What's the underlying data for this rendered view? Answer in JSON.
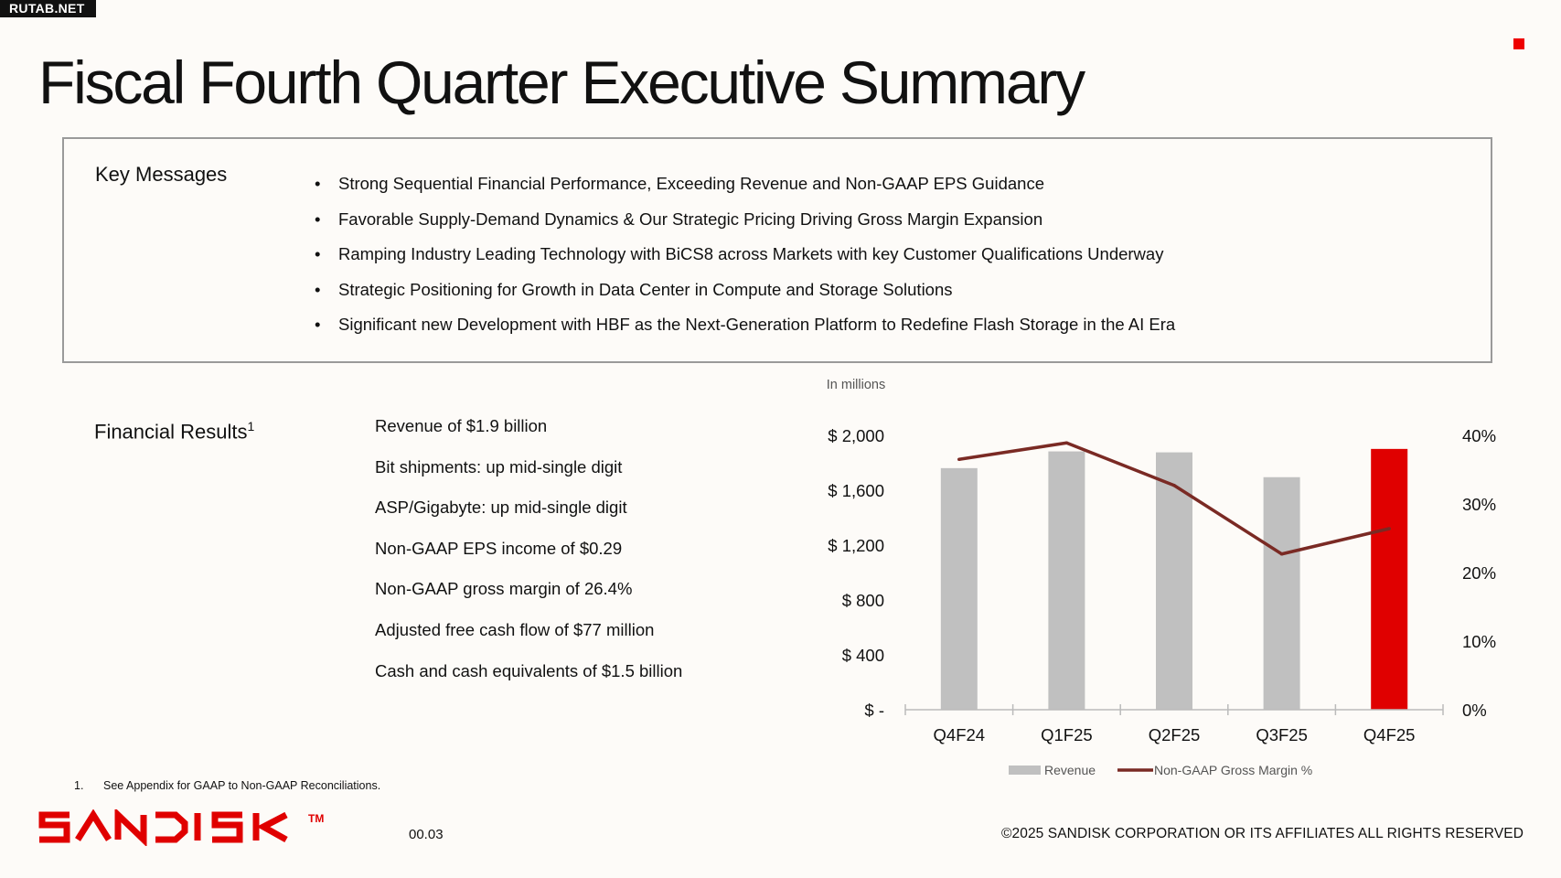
{
  "watermark": "RUTAB.NET",
  "title": "Fiscal Fourth Quarter Executive Summary",
  "key_messages": {
    "heading": "Key Messages",
    "items": [
      "Strong Sequential Financial Performance, Exceeding Revenue and Non-GAAP EPS Guidance",
      "Favorable Supply-Demand Dynamics & Our Strategic Pricing Driving Gross Margin Expansion",
      "Ramping Industry Leading Technology with BiCS8 across Markets with key Customer Qualifications Underway",
      "Strategic Positioning for Growth in Data Center in Compute and Storage Solutions",
      "Significant new Development with HBF as the Next-Generation Platform to Redefine Flash Storage in the AI Era"
    ]
  },
  "financial_results": {
    "heading": "Financial Results",
    "heading_sup": "1",
    "items": [
      "Revenue of $1.9 billion",
      "Bit shipments: up mid-single digit",
      "ASP/Gigabyte: up mid-single digit",
      "Non-GAAP EPS income of $0.29",
      "Non-GAAP gross margin of 26.4%",
      "Adjusted free cash flow of $77 million",
      "Cash and cash equivalents of $1.5 billion"
    ]
  },
  "chart_data": {
    "type": "bar",
    "unit_note": "In millions",
    "categories": [
      "Q4F24",
      "Q1F25",
      "Q2F25",
      "Q3F25",
      "Q4F25"
    ],
    "series": [
      {
        "name": "Revenue",
        "type": "bar",
        "axis": "left",
        "values": [
          1761,
          1883,
          1876,
          1695,
          1901
        ],
        "color": "#c0c0c0",
        "highlight_color": "#e00000",
        "highlight_index": 4
      },
      {
        "name": "Non-GAAP Gross Margin %",
        "type": "line",
        "axis": "right",
        "values": [
          36.5,
          38.9,
          32.7,
          22.7,
          26.4
        ],
        "color": "#7a2a24"
      }
    ],
    "left_axis": {
      "ylim": [
        0,
        2000
      ],
      "ticks": [
        0,
        400,
        800,
        1200,
        1600,
        2000
      ],
      "tick_labels": [
        "$ -",
        "$ 400",
        "$ 800",
        "$ 1,200",
        "$ 1,600",
        "$ 2,000"
      ]
    },
    "right_axis": {
      "ylim": [
        0,
        40
      ],
      "ticks": [
        0,
        10,
        20,
        30,
        40
      ],
      "tick_labels": [
        "0%",
        "10%",
        "20%",
        "30%",
        "40%"
      ]
    },
    "grid": false,
    "legend": "bottom"
  },
  "footnote": {
    "number": "1.",
    "text": "See Appendix for GAAP to Non-GAAP Reconciliations."
  },
  "logo": {
    "text": "SANDISK",
    "tm": "TM",
    "color": "#e00000"
  },
  "page_number": "00.03",
  "copyright": "©2025 SANDISK CORPORATION OR ITS AFFILIATES ALL RIGHTS RESERVED"
}
